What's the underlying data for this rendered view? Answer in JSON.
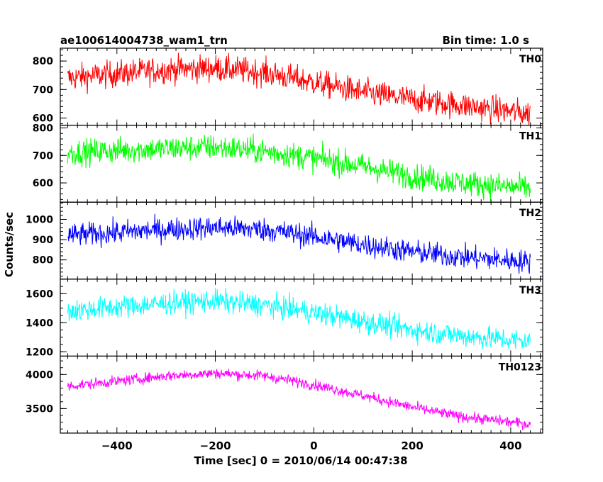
{
  "chart_data": {
    "type": "line",
    "title_left": "ae100614004738_wam1_trn",
    "title_right": "Bin time: 1.0 s",
    "xlabel": "Time [sec] 0 = 2010/06/14 00:47:38",
    "ylabel": "Counts/sec",
    "xlim": [
      -515,
      465
    ],
    "x_range_data": [
      -500,
      440
    ],
    "x_ticks": [
      -400,
      -200,
      0,
      200,
      400
    ],
    "x_tick_labels": [
      "−400",
      "−200",
      "0",
      "200",
      "400"
    ],
    "x_minor_step": 20,
    "bin_time_s": 1.0,
    "panels": [
      {
        "name": "TH0",
        "color": "#ff0000",
        "ylim": [
          575,
          845
        ],
        "y_ticks": [
          600,
          700,
          800
        ],
        "y_tick_labels": [
          "600",
          "700",
          "800"
        ],
        "y_minor_step": 20,
        "trend": [
          [
            -500,
            740
          ],
          [
            -300,
            770
          ],
          [
            -200,
            775
          ],
          [
            -100,
            760
          ],
          [
            0,
            725
          ],
          [
            100,
            690
          ],
          [
            200,
            665
          ],
          [
            300,
            645
          ],
          [
            440,
            615
          ]
        ],
        "noise": 45
      },
      {
        "name": "TH1",
        "color": "#00ff00",
        "ylim": [
          530,
          810
        ],
        "y_ticks": [
          600,
          700,
          800
        ],
        "y_tick_labels": [
          "600",
          "700",
          "800"
        ],
        "y_minor_step": 20,
        "trend": [
          [
            -500,
            710
          ],
          [
            -300,
            725
          ],
          [
            -200,
            730
          ],
          [
            -100,
            715
          ],
          [
            0,
            690
          ],
          [
            100,
            660
          ],
          [
            200,
            625
          ],
          [
            300,
            600
          ],
          [
            440,
            580
          ]
        ],
        "noise": 45
      },
      {
        "name": "TH2",
        "color": "#0000ff",
        "ylim": [
          705,
          1085
        ],
        "y_ticks": [
          800,
          900,
          1000
        ],
        "y_tick_labels": [
          "800",
          "900",
          "1000"
        ],
        "y_minor_step": 20,
        "trend": [
          [
            -500,
            920
          ],
          [
            -300,
            950
          ],
          [
            -200,
            960
          ],
          [
            -100,
            950
          ],
          [
            0,
            915
          ],
          [
            100,
            875
          ],
          [
            200,
            840
          ],
          [
            300,
            815
          ],
          [
            440,
            790
          ]
        ],
        "noise": 55
      },
      {
        "name": "TH3",
        "color": "#00ffff",
        "ylim": [
          1170,
          1700
        ],
        "y_ticks": [
          1200,
          1400,
          1600
        ],
        "y_tick_labels": [
          "1200",
          "1400",
          "1600"
        ],
        "y_minor_step": 50,
        "trend": [
          [
            -500,
            1480
          ],
          [
            -300,
            1535
          ],
          [
            -200,
            1550
          ],
          [
            -100,
            1520
          ],
          [
            0,
            1470
          ],
          [
            100,
            1410
          ],
          [
            200,
            1350
          ],
          [
            300,
            1310
          ],
          [
            440,
            1270
          ]
        ],
        "noise": 75
      },
      {
        "name": "TH0123",
        "color": "#ff00ff",
        "ylim": [
          3140,
          4270
        ],
        "y_ticks": [
          3500,
          4000
        ],
        "y_tick_labels": [
          "3500",
          "4000"
        ],
        "y_minor_step": 100,
        "trend": [
          [
            -500,
            3830
          ],
          [
            -400,
            3900
          ],
          [
            -300,
            3980
          ],
          [
            -200,
            4020
          ],
          [
            -100,
            3980
          ],
          [
            0,
            3850
          ],
          [
            100,
            3690
          ],
          [
            200,
            3520
          ],
          [
            300,
            3380
          ],
          [
            440,
            3270
          ]
        ],
        "noise": 75
      }
    ]
  }
}
